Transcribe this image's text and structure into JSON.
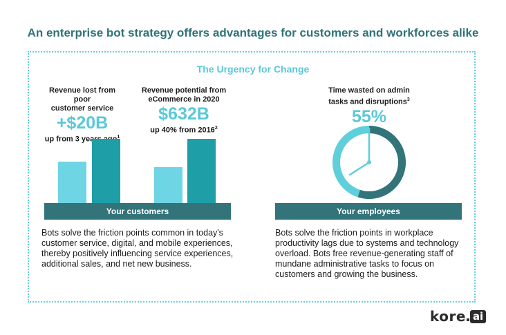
{
  "headline": "An enterprise bot strategy offers advantages for customers and workforces alike",
  "subtitle": "The Urgency for Change",
  "customers": {
    "stat1": {
      "label_line1": "Revenue lost from poor",
      "label_line2": "customer service",
      "value": "+$20B",
      "note": "up from 3 years ago",
      "footnote": "1"
    },
    "stat2": {
      "label_line1": "Revenue potential from",
      "label_line2": "eCommerce in 2020",
      "value": "$632B",
      "note": "up 40% from 2016",
      "footnote": "2"
    },
    "band_label": "Your customers",
    "paragraph": "Bots solve the friction points common in today's customer service, digital, and mobile experiences, thereby positively influencing service experiences, additional sales, and net new business.",
    "colors": {
      "light": "#6dd5e3",
      "dark": "#1e9ea7"
    }
  },
  "employees": {
    "stat": {
      "label_line1": "Time wasted on admin",
      "label_line2": "tasks and disruptions",
      "footnote": "3",
      "value": "55%"
    },
    "pie_fraction": 0.55,
    "band_label": "Your employees",
    "paragraph": "Bots solve the friction points in workplace productivity lags due to systems and technology overload. Bots free revenue-generating staff of mundane administrative tasks to focus on customers and growing the business.",
    "colors": {
      "slice": "#327479",
      "rest": "#5ecfdb"
    }
  },
  "logo": {
    "word": "kore",
    "badge": "ai"
  }
}
